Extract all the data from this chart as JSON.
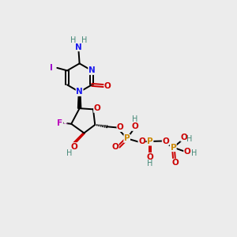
{
  "bg_color": "#ececec",
  "colors": {
    "C": "#000000",
    "N": "#1a1aee",
    "O": "#cc0000",
    "P": "#cc8800",
    "F": "#bb00bb",
    "I": "#9900cc",
    "H": "#448877",
    "bond": "#000000"
  },
  "xlim": [
    0,
    10
  ],
  "ylim": [
    0,
    10
  ]
}
